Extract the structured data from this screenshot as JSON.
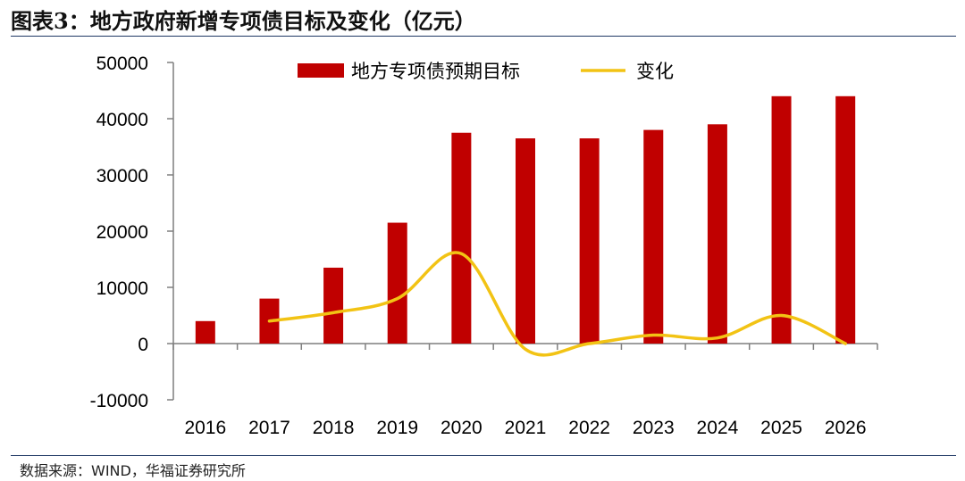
{
  "title": "图表3：地方政府新增专项债目标及变化（亿元）",
  "source": "数据来源：WIND，华福证券研究所",
  "colors": {
    "bar": "#c00000",
    "line": "#f2c314",
    "axis": "#7f7f7f",
    "rule": "#1f3864"
  },
  "chart_data": {
    "type": "bar+line",
    "title": "图表3：地方政府新增专项债目标及变化（亿元）",
    "categories": [
      "2016",
      "2017",
      "2018",
      "2019",
      "2020",
      "2021",
      "2022",
      "2023",
      "2024",
      "2025",
      "2026"
    ],
    "series": [
      {
        "name": "地方专项债预期目标",
        "type": "bar",
        "values": [
          4000,
          8000,
          13500,
          21500,
          37500,
          36500,
          36500,
          38000,
          39000,
          44000,
          44000
        ]
      },
      {
        "name": "变化",
        "type": "line",
        "values": [
          null,
          4000,
          5500,
          8000,
          16000,
          -1000,
          0,
          1500,
          1000,
          5000,
          0
        ]
      }
    ],
    "ylim": [
      -10000,
      50000
    ],
    "yticks": [
      -10000,
      0,
      10000,
      20000,
      30000,
      40000,
      50000
    ],
    "ytick_labels": [
      "-10000",
      "0",
      "10000",
      "20000",
      "30000",
      "40000",
      "50000"
    ],
    "legend_position": "top"
  }
}
